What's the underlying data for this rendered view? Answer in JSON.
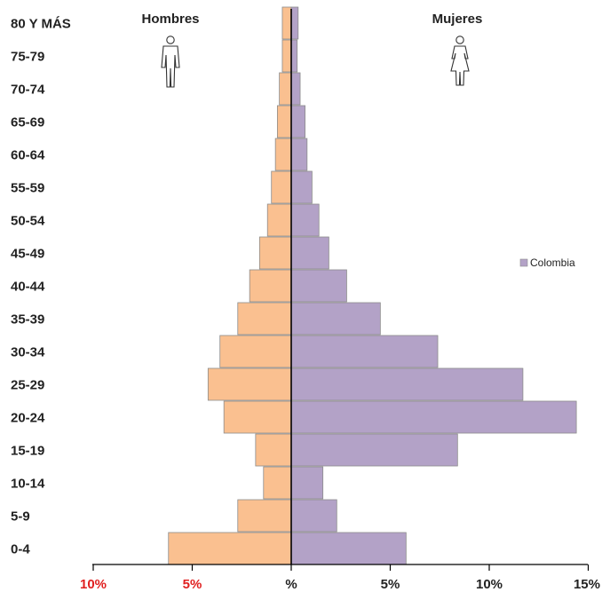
{
  "chart_data": {
    "type": "bar",
    "orientation": "horizontal-population-pyramid",
    "categories": [
      "0-4",
      "5-9",
      "10-14",
      "15-19",
      "20-24",
      "25-29",
      "30-34",
      "35-39",
      "40-44",
      "45-49",
      "50-54",
      "55-59",
      "60-64",
      "65-69",
      "70-74",
      "75-79",
      "80 Y MÁS"
    ],
    "series": [
      {
        "name": "Hombres",
        "side": "left",
        "color": "#fac090",
        "values": [
          6.2,
          2.7,
          1.4,
          1.8,
          3.4,
          4.2,
          3.6,
          2.7,
          2.1,
          1.6,
          1.2,
          1.0,
          0.8,
          0.7,
          0.6,
          0.45,
          0.45
        ]
      },
      {
        "name": "Mujeres",
        "side": "right",
        "color": "#b3a2c7",
        "values": [
          5.8,
          2.3,
          1.6,
          8.4,
          14.4,
          11.7,
          7.4,
          4.5,
          2.8,
          1.9,
          1.4,
          1.05,
          0.8,
          0.7,
          0.45,
          0.3,
          0.35
        ]
      }
    ],
    "x_ticks": [
      {
        "value": -10,
        "label": "10%",
        "color": "#e02020"
      },
      {
        "value": -5,
        "label": "5%",
        "color": "#e02020"
      },
      {
        "value": 0,
        "label": "%",
        "color": "#222222"
      },
      {
        "value": 5,
        "label": "5%",
        "color": "#222222"
      },
      {
        "value": 10,
        "label": "10%",
        "color": "#222222"
      },
      {
        "value": 15,
        "label": "15%",
        "color": "#222222"
      }
    ],
    "xlim": [
      -10,
      15
    ],
    "headers": {
      "left": "Hombres",
      "right": "Mujeres"
    },
    "legend": {
      "label": "Colombia",
      "position": "right"
    },
    "grid": false,
    "bar_edge_color": "#8c8c8c"
  },
  "icons": {
    "left": "male-person-icon",
    "right": "female-person-icon"
  }
}
